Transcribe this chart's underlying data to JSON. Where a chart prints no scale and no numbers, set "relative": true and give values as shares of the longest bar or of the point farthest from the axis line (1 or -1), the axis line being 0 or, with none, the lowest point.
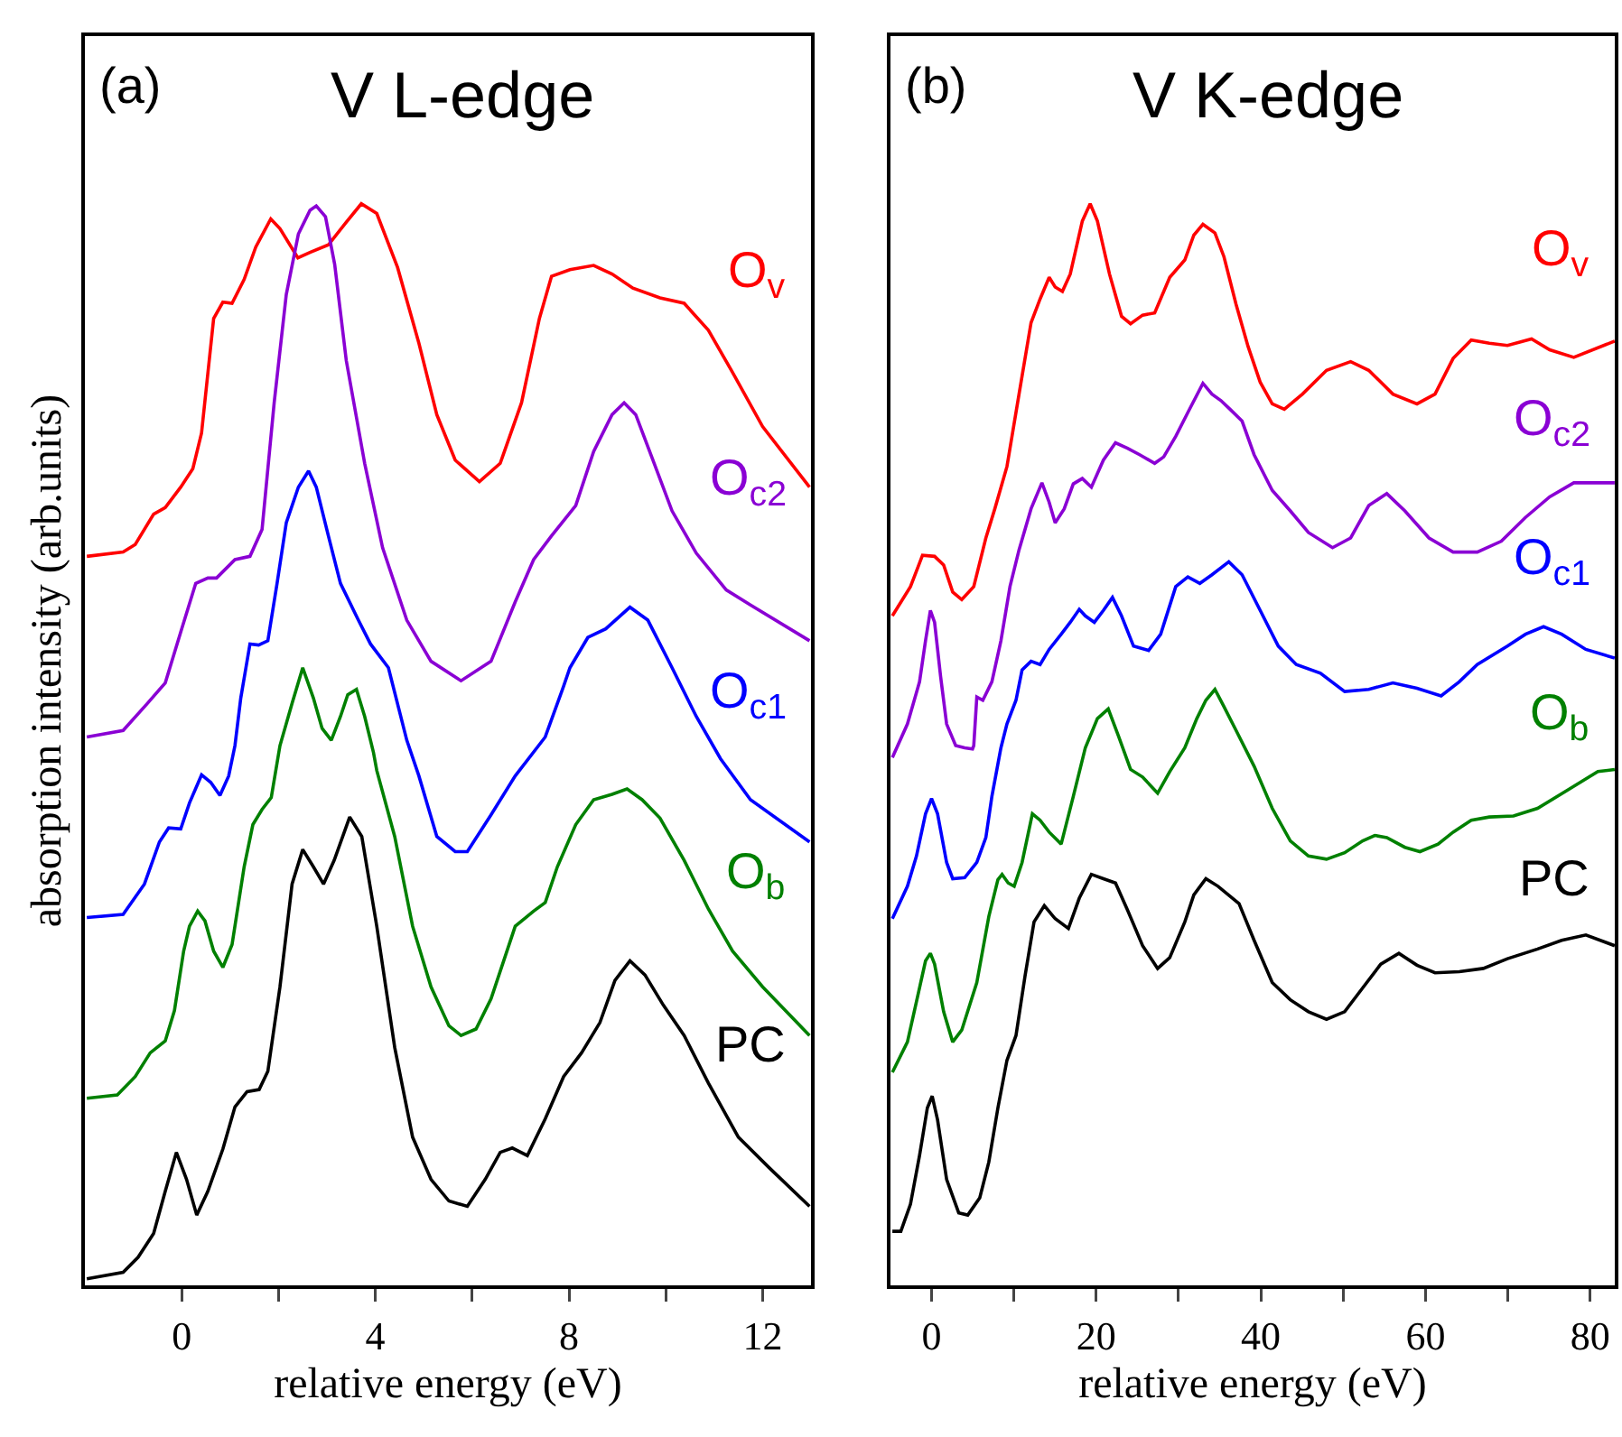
{
  "chart_data": [
    {
      "type": "line",
      "title": "V L-edge",
      "annotations": [
        "(a)"
      ],
      "xlabel": "relative energy (eV)",
      "ylabel": "absorption intensity (arb.units)",
      "relative": true,
      "line_style": "solid",
      "xlim": [
        -2,
        13
      ],
      "xticks": [
        0,
        {
          "value": 2,
          "label": null
        },
        4,
        {
          "value": 6,
          "label": null
        },
        8,
        {
          "value": 10,
          "label": null
        },
        12
      ],
      "series": [
        {
          "name": "O$_{v}$",
          "color": "#ff0000",
          "x": [
            -1.96,
            -1.21,
            -0.96,
            -0.58,
            -0.34,
            -0.02,
            0.23,
            0.41,
            0.66,
            0.85,
            1.04,
            1.29,
            1.53,
            1.84,
            2.03,
            2.4,
            2.65,
            3.03,
            3.4,
            3.71,
            4.03,
            4.46,
            4.9,
            5.27,
            5.65,
            6.15,
            6.58,
            7.02,
            7.39,
            7.64,
            8.02,
            8.51,
            8.89,
            9.32,
            9.88,
            10.38,
            10.88,
            11.38,
            12.0,
            12.97
          ],
          "values": [
            0.674,
            0.678,
            0.685,
            0.713,
            0.719,
            0.738,
            0.755,
            0.788,
            0.894,
            0.909,
            0.908,
            0.93,
            0.96,
            0.986,
            0.977,
            0.95,
            0.955,
            0.962,
            0.983,
            1.0,
            0.991,
            0.941,
            0.871,
            0.805,
            0.763,
            0.743,
            0.76,
            0.816,
            0.894,
            0.933,
            0.939,
            0.943,
            0.935,
            0.922,
            0.913,
            0.908,
            0.883,
            0.844,
            0.794,
            0.738
          ]
        },
        {
          "name": "O$_{c2}$",
          "color": "#8a00d4",
          "x": [
            -1.96,
            -1.21,
            -0.71,
            -0.34,
            -0.02,
            0.29,
            0.54,
            0.72,
            1.1,
            1.41,
            1.66,
            1.91,
            2.16,
            2.41,
            2.65,
            2.78,
            2.97,
            3.16,
            3.4,
            3.78,
            4.15,
            4.65,
            5.15,
            5.77,
            6.39,
            6.89,
            7.27,
            7.64,
            8.14,
            8.51,
            8.89,
            9.14,
            9.38,
            9.76,
            10.13,
            10.63,
            11.25,
            11.75,
            12.97
          ],
          "values": [
            0.507,
            0.513,
            0.538,
            0.557,
            0.604,
            0.649,
            0.654,
            0.654,
            0.671,
            0.674,
            0.699,
            0.816,
            0.916,
            0.972,
            0.994,
            0.998,
            0.988,
            0.944,
            0.855,
            0.76,
            0.682,
            0.615,
            0.577,
            0.559,
            0.577,
            0.632,
            0.671,
            0.693,
            0.721,
            0.771,
            0.805,
            0.816,
            0.805,
            0.76,
            0.716,
            0.677,
            0.643,
            0.629,
            0.596
          ]
        },
        {
          "name": "O$_{c1}$",
          "color": "#0000ff",
          "x": [
            -1.96,
            -1.21,
            -0.77,
            -0.46,
            -0.27,
            -0.02,
            0.16,
            0.41,
            0.6,
            0.79,
            0.97,
            1.1,
            1.22,
            1.41,
            1.59,
            1.78,
            1.97,
            2.16,
            2.41,
            2.62,
            2.78,
            3.03,
            3.28,
            3.65,
            3.9,
            4.27,
            4.65,
            4.9,
            5.27,
            5.65,
            5.9,
            6.39,
            6.89,
            7.51,
            7.89,
            8.02,
            8.39,
            8.76,
            9.26,
            9.63,
            10.13,
            10.63,
            11.13,
            11.75,
            12.97
          ],
          "values": [
            0.34,
            0.343,
            0.371,
            0.41,
            0.423,
            0.422,
            0.446,
            0.472,
            0.465,
            0.453,
            0.471,
            0.499,
            0.543,
            0.593,
            0.592,
            0.596,
            0.649,
            0.705,
            0.738,
            0.753,
            0.738,
            0.693,
            0.649,
            0.615,
            0.593,
            0.571,
            0.504,
            0.471,
            0.415,
            0.401,
            0.401,
            0.435,
            0.471,
            0.507,
            0.554,
            0.571,
            0.599,
            0.607,
            0.627,
            0.615,
            0.571,
            0.526,
            0.487,
            0.449,
            0.41
          ]
        },
        {
          "name": "O$_{b}$",
          "color": "#008000",
          "x": [
            -1.96,
            -1.33,
            -0.96,
            -0.65,
            -0.34,
            -0.15,
            0.04,
            0.16,
            0.33,
            0.48,
            0.66,
            0.85,
            1.04,
            1.29,
            1.47,
            1.66,
            1.85,
            2.03,
            2.28,
            2.5,
            2.72,
            2.9,
            3.09,
            3.28,
            3.43,
            3.61,
            3.78,
            3.96,
            4.03,
            4.4,
            4.77,
            5.15,
            5.52,
            5.77,
            6.08,
            6.39,
            6.89,
            7.27,
            7.51,
            7.76,
            8.14,
            8.51,
            8.89,
            9.2,
            9.51,
            9.88,
            10.38,
            10.88,
            11.38,
            12.0,
            12.97
          ],
          "values": [
            0.173,
            0.176,
            0.193,
            0.215,
            0.226,
            0.254,
            0.309,
            0.332,
            0.346,
            0.337,
            0.309,
            0.294,
            0.315,
            0.387,
            0.426,
            0.44,
            0.451,
            0.499,
            0.538,
            0.571,
            0.543,
            0.515,
            0.504,
            0.526,
            0.546,
            0.551,
            0.526,
            0.493,
            0.476,
            0.415,
            0.332,
            0.276,
            0.24,
            0.231,
            0.237,
            0.265,
            0.332,
            0.346,
            0.354,
            0.387,
            0.426,
            0.449,
            0.454,
            0.459,
            0.449,
            0.432,
            0.393,
            0.348,
            0.309,
            0.276,
            0.231
          ]
        },
        {
          "name": "PC",
          "color": "#000000",
          "x": [
            -1.96,
            -1.21,
            -0.9,
            -0.58,
            -0.34,
            -0.11,
            0.1,
            0.31,
            0.54,
            0.85,
            1.1,
            1.35,
            1.6,
            1.78,
            2.03,
            2.28,
            2.5,
            2.72,
            2.93,
            3.15,
            3.47,
            3.72,
            4.03,
            4.4,
            4.77,
            5.15,
            5.52,
            5.9,
            6.27,
            6.58,
            6.83,
            7.14,
            7.51,
            7.89,
            8.26,
            8.64,
            8.95,
            9.26,
            9.57,
            9.95,
            10.38,
            10.88,
            11.5,
            12.13,
            12.97
          ],
          "values": [
            0.006,
            0.012,
            0.026,
            0.048,
            0.087,
            0.123,
            0.098,
            0.065,
            0.087,
            0.126,
            0.165,
            0.179,
            0.181,
            0.198,
            0.276,
            0.371,
            0.403,
            0.387,
            0.371,
            0.393,
            0.433,
            0.415,
            0.332,
            0.22,
            0.137,
            0.098,
            0.078,
            0.073,
            0.098,
            0.123,
            0.127,
            0.12,
            0.154,
            0.193,
            0.215,
            0.243,
            0.282,
            0.3,
            0.287,
            0.259,
            0.231,
            0.187,
            0.137,
            0.109,
            0.073
          ]
        }
      ]
    },
    {
      "type": "line",
      "title": "V K-edge",
      "annotations": [
        "(b)"
      ],
      "xlabel": "relative energy (eV)",
      "relative": true,
      "line_style": "solid",
      "xlim": [
        -5,
        83
      ],
      "xticks": [
        0,
        {
          "value": 10,
          "label": null
        },
        20,
        {
          "value": 30,
          "label": null
        },
        40,
        {
          "value": 50,
          "label": null
        },
        60,
        {
          "value": 70,
          "label": null
        },
        80
      ],
      "series": [
        {
          "name": "O$_{v}$",
          "color": "#ff0000",
          "x": [
            -4.77,
            -2.57,
            -1.11,
            0.36,
            1.46,
            2.56,
            3.66,
            5.12,
            6.59,
            7.68,
            9.15,
            10.62,
            12.08,
            13.18,
            14.28,
            15.01,
            15.89,
            16.84,
            18.31,
            19.26,
            20.14,
            21.61,
            23.07,
            24.17,
            25.63,
            27.1,
            28.93,
            30.76,
            31.86,
            32.96,
            34.42,
            35.52,
            36.99,
            38.45,
            39.92,
            41.38,
            42.85,
            45.05,
            47.98,
            50.91,
            53.11,
            56.04,
            58.97,
            61.16,
            63.36,
            65.56,
            67.76,
            69.96,
            72.89,
            75.09,
            78.02,
            82.99
          ],
          "values": [
            0.619,
            0.646,
            0.675,
            0.674,
            0.666,
            0.641,
            0.634,
            0.646,
            0.691,
            0.718,
            0.757,
            0.824,
            0.89,
            0.912,
            0.932,
            0.923,
            0.919,
            0.935,
            0.984,
            1.0,
            0.984,
            0.935,
            0.896,
            0.889,
            0.897,
            0.899,
            0.932,
            0.948,
            0.971,
            0.981,
            0.973,
            0.951,
            0.907,
            0.868,
            0.835,
            0.815,
            0.81,
            0.824,
            0.846,
            0.854,
            0.846,
            0.824,
            0.815,
            0.824,
            0.857,
            0.874,
            0.871,
            0.869,
            0.875,
            0.865,
            0.858,
            0.873
          ]
        },
        {
          "name": "O$_{c2}$",
          "color": "#8a00d4",
          "x": [
            -4.77,
            -2.94,
            -1.47,
            -0.74,
            -0.15,
            0.36,
            1.09,
            1.82,
            2.92,
            4.02,
            4.97,
            5.12,
            5.49,
            6.22,
            7.32,
            8.42,
            9.52,
            10.62,
            12.08,
            13.4,
            14.28,
            15.01,
            16.11,
            17.21,
            18.31,
            19.41,
            20.87,
            22.34,
            23.8,
            25.27,
            27.1,
            28.2,
            29.66,
            31.13,
            32.96,
            34.06,
            35.15,
            36.25,
            37.72,
            39.18,
            41.38,
            43.58,
            45.78,
            48.71,
            50.91,
            53.11,
            55.3,
            57.5,
            60.43,
            63.36,
            66.29,
            69.22,
            72.15,
            75.09,
            78.02,
            82.99
          ],
          "values": [
            0.488,
            0.519,
            0.558,
            0.596,
            0.624,
            0.613,
            0.563,
            0.519,
            0.499,
            0.497,
            0.496,
            0.499,
            0.544,
            0.541,
            0.558,
            0.596,
            0.646,
            0.68,
            0.718,
            0.742,
            0.724,
            0.705,
            0.718,
            0.741,
            0.746,
            0.738,
            0.763,
            0.779,
            0.774,
            0.768,
            0.76,
            0.766,
            0.785,
            0.807,
            0.834,
            0.824,
            0.818,
            0.81,
            0.799,
            0.768,
            0.735,
            0.716,
            0.696,
            0.682,
            0.691,
            0.721,
            0.732,
            0.716,
            0.691,
            0.678,
            0.678,
            0.688,
            0.71,
            0.729,
            0.742,
            0.742
          ]
        },
        {
          "name": "O$_{c1}$",
          "color": "#0000ff",
          "x": [
            -4.77,
            -2.94,
            -1.84,
            -0.74,
            -0.01,
            0.72,
            1.82,
            2.56,
            4.02,
            5.49,
            6.59,
            7.32,
            8.42,
            9.15,
            10.25,
            10.99,
            12.08,
            13.18,
            14.28,
            15.74,
            16.84,
            17.94,
            18.67,
            19.77,
            20.87,
            21.97,
            23.07,
            24.53,
            26.36,
            27.83,
            29.66,
            31.13,
            32.59,
            34.06,
            36.11,
            37.72,
            39.92,
            42.12,
            44.31,
            47.24,
            50.18,
            53.11,
            56.04,
            58.97,
            61.9,
            64.1,
            66.29,
            69.96,
            72.15,
            74.35,
            76.55,
            79.48,
            82.99
          ],
          "values": [
            0.339,
            0.369,
            0.397,
            0.436,
            0.45,
            0.436,
            0.391,
            0.376,
            0.377,
            0.391,
            0.414,
            0.452,
            0.497,
            0.519,
            0.541,
            0.569,
            0.577,
            0.574,
            0.588,
            0.602,
            0.613,
            0.625,
            0.619,
            0.613,
            0.624,
            0.636,
            0.619,
            0.591,
            0.587,
            0.602,
            0.646,
            0.655,
            0.649,
            0.657,
            0.669,
            0.657,
            0.624,
            0.591,
            0.574,
            0.566,
            0.549,
            0.551,
            0.557,
            0.552,
            0.545,
            0.558,
            0.574,
            0.591,
            0.602,
            0.609,
            0.602,
            0.588,
            0.58
          ]
        },
        {
          "name": "O$_{b}$",
          "color": "#008000",
          "x": [
            -4.77,
            -2.94,
            -1.47,
            -0.74,
            -0.15,
            0.36,
            1.46,
            2.56,
            3.66,
            5.49,
            6.95,
            8.05,
            8.56,
            9.3,
            10.03,
            10.99,
            12.24,
            13.18,
            14.28,
            15.74,
            17.21,
            18.67,
            20.14,
            21.46,
            22.7,
            24.17,
            25.63,
            27.46,
            28.93,
            30.76,
            32.22,
            33.32,
            34.42,
            35.52,
            36.99,
            39.18,
            41.38,
            43.58,
            45.78,
            47.98,
            50.18,
            52.37,
            53.84,
            55.3,
            57.5,
            59.33,
            61.53,
            63.36,
            65.56,
            67.76,
            70.69,
            73.62,
            77.28,
            80.95,
            82.99
          ],
          "values": [
            0.197,
            0.225,
            0.275,
            0.3,
            0.307,
            0.297,
            0.253,
            0.225,
            0.236,
            0.28,
            0.341,
            0.375,
            0.38,
            0.372,
            0.369,
            0.391,
            0.436,
            0.43,
            0.419,
            0.408,
            0.452,
            0.497,
            0.524,
            0.533,
            0.508,
            0.477,
            0.47,
            0.455,
            0.475,
            0.497,
            0.524,
            0.541,
            0.551,
            0.535,
            0.513,
            0.48,
            0.441,
            0.411,
            0.397,
            0.394,
            0.4,
            0.411,
            0.416,
            0.414,
            0.405,
            0.401,
            0.408,
            0.419,
            0.43,
            0.433,
            0.434,
            0.441,
            0.458,
            0.475,
            0.477
          ]
        },
        {
          "name": "PC",
          "color": "#000000",
          "x": [
            -4.77,
            -3.74,
            -2.57,
            -1.47,
            -0.52,
            0.07,
            0.72,
            1.82,
            3.29,
            4.39,
            5.85,
            6.95,
            8.05,
            9.15,
            10.25,
            11.35,
            12.44,
            13.69,
            15.01,
            16.62,
            17.94,
            19.41,
            20.87,
            22.34,
            23.8,
            25.63,
            27.46,
            28.93,
            30.76,
            31.86,
            33.32,
            34.79,
            37.35,
            39.18,
            41.38,
            43.58,
            45.78,
            47.98,
            50.18,
            52.37,
            54.57,
            56.77,
            58.97,
            61.16,
            64.1,
            67.03,
            69.96,
            73.62,
            76.55,
            79.49,
            82.99
          ],
          "values": [
            0.05,
            0.05,
            0.075,
            0.12,
            0.164,
            0.175,
            0.153,
            0.098,
            0.067,
            0.065,
            0.081,
            0.114,
            0.164,
            0.208,
            0.231,
            0.286,
            0.336,
            0.351,
            0.339,
            0.33,
            0.358,
            0.38,
            0.376,
            0.372,
            0.347,
            0.314,
            0.293,
            0.303,
            0.336,
            0.361,
            0.376,
            0.369,
            0.353,
            0.319,
            0.28,
            0.264,
            0.253,
            0.246,
            0.253,
            0.275,
            0.297,
            0.307,
            0.296,
            0.289,
            0.29,
            0.293,
            0.302,
            0.311,
            0.319,
            0.324,
            0.314
          ]
        }
      ]
    }
  ]
}
